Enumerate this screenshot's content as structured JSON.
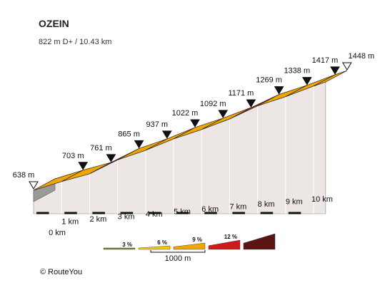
{
  "chart_data": {
    "type": "area",
    "title": "OZEIN",
    "subtitle": "822 m D+ / 10.43 km",
    "x_unit": "km",
    "y_unit": "m",
    "x_ticks": [
      "0 km",
      "1 km",
      "2 km",
      "3 km",
      "4 km",
      "5 km",
      "6 km",
      "7 km",
      "8 km",
      "9 km",
      "10 km"
    ],
    "points": [
      {
        "km": 0,
        "elevation": 638,
        "label": "638 m",
        "marker": "start"
      },
      {
        "km": 1,
        "elevation": 703,
        "label": "703 m",
        "marker": "km"
      },
      {
        "km": 2,
        "elevation": 761,
        "label": "761 m",
        "marker": "km"
      },
      {
        "km": 3,
        "elevation": 865,
        "label": "865 m",
        "marker": "km"
      },
      {
        "km": 4,
        "elevation": 937,
        "label": "937 m",
        "marker": "km"
      },
      {
        "km": 5,
        "elevation": 1022,
        "label": "1022 m",
        "marker": "km"
      },
      {
        "km": 6,
        "elevation": 1092,
        "label": "1092 m",
        "marker": "km"
      },
      {
        "km": 7,
        "elevation": 1171,
        "label": "1171 m",
        "marker": "km"
      },
      {
        "km": 8,
        "elevation": 1269,
        "label": "1269 m",
        "marker": "km"
      },
      {
        "km": 9,
        "elevation": 1338,
        "label": "1338 m",
        "marker": "km"
      },
      {
        "km": 10,
        "elevation": 1417,
        "label": "1417 m",
        "marker": "km"
      },
      {
        "km": 10.43,
        "elevation": 1448,
        "label": "1448 m",
        "marker": "end"
      }
    ],
    "gradient_legend": {
      "items": [
        {
          "label": "3 %",
          "color": "#7a8b2e"
        },
        {
          "label": "6 %",
          "color": "#f5c800"
        },
        {
          "label": "9 %",
          "color": "#f0a500"
        },
        {
          "label": "12 %",
          "color": "#d01a1a"
        },
        {
          "label": "",
          "color": "#5a1414"
        }
      ],
      "scale_label": "1000 m"
    }
  },
  "footer": {
    "copyright": "©  RouteYou"
  }
}
